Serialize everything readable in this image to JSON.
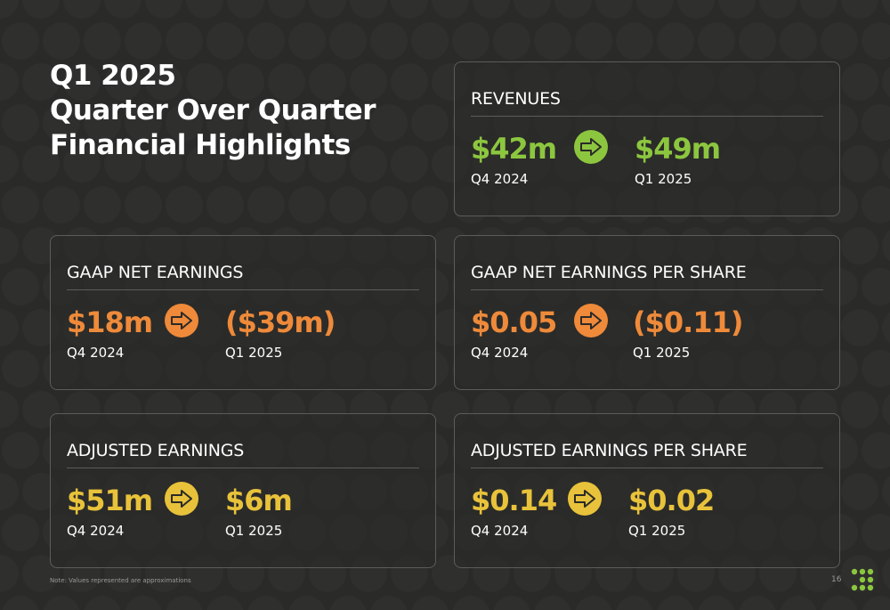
{
  "title": {
    "line1": "Q1 2025",
    "line2": "Quarter Over Quarter",
    "line3": "Financial Highlights"
  },
  "colors": {
    "green": "#8cc63f",
    "orange": "#ee8a3a",
    "yellow": "#e8c23a",
    "background": "#2a2a28"
  },
  "cards": {
    "revenues": {
      "label": "REVENUES",
      "prev_value": "$42m",
      "prev_period": "Q4 2024",
      "curr_value": "$49m",
      "curr_period": "Q1 2025",
      "arrow_icon": "right-arrow-icon"
    },
    "gaap_net": {
      "label": "GAAP NET EARNINGS",
      "prev_value": "$18m",
      "prev_period": "Q4 2024",
      "curr_value": "($39m)",
      "curr_period": "Q1 2025",
      "arrow_icon": "right-arrow-icon"
    },
    "gaap_eps": {
      "label": "GAAP NET EARNINGS PER SHARE",
      "prev_value": "$0.05",
      "prev_period": "Q4 2024",
      "curr_value": "($0.11)",
      "curr_period": "Q1 2025",
      "arrow_icon": "right-arrow-icon"
    },
    "adj_earnings": {
      "label": "ADJUSTED EARNINGS",
      "prev_value": "$51m",
      "prev_period": "Q4 2024",
      "curr_value": "$6m",
      "curr_period": "Q1 2025",
      "arrow_icon": "right-arrow-icon"
    },
    "adj_eps": {
      "label": "ADJUSTED EARNINGS PER SHARE",
      "prev_value": "$0.14",
      "prev_period": "Q4 2024",
      "curr_value": "$0.02",
      "curr_period": "Q1 2025",
      "arrow_icon": "right-arrow-icon"
    }
  },
  "footer": {
    "note": "Note: Values represented are approximations",
    "page_number": "16",
    "logo_icon": "dot-grid-logo-icon"
  }
}
